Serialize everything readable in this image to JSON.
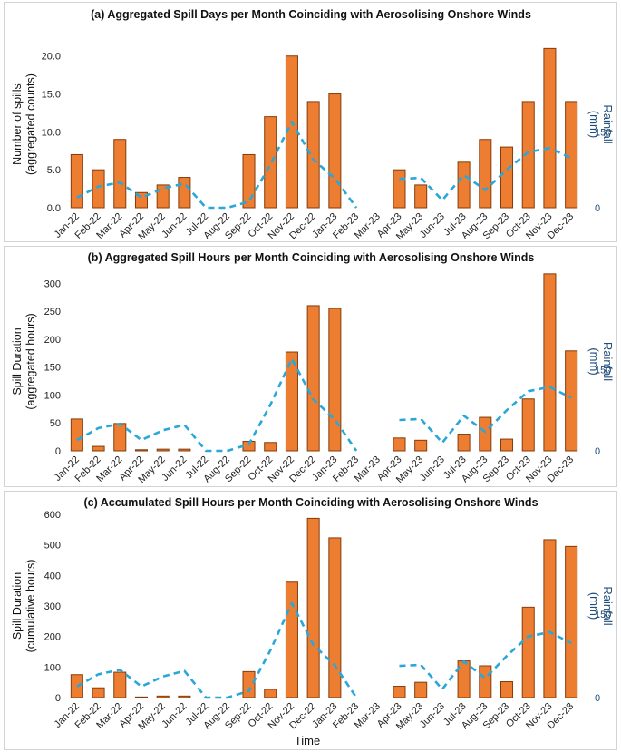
{
  "colors": {
    "bar_fill": "#ed7d31",
    "bar_stroke": "#843c0c",
    "rain_line": "#2aa7d9",
    "right_axis": "#1f4e79"
  },
  "xlabel": "Time",
  "chart_data": [
    {
      "type": "bar",
      "title": "(a) Aggregated Spill Days per Month Coinciding with Aerosolising Onshore Winds",
      "ylabel": [
        "Number of spills",
        "(aggregated counts)"
      ],
      "y2label": [
        "Rainfall",
        "(mm)"
      ],
      "categories": [
        "Jan-22",
        "Feb-22",
        "Mar-22",
        "Apr-22",
        "May-22",
        "Jun-22",
        "Jul-22",
        "Aug-22",
        "Sep-22",
        "Oct-22",
        "Nov-22",
        "Dec-22",
        "Jan-23",
        "Feb-23",
        "Mar-23",
        "Apr-23",
        "May-23",
        "Jun-23",
        "Jul-23",
        "Aug-23",
        "Sep-23",
        "Oct-23",
        "Nov-23",
        "Dec-23"
      ],
      "ylim": [
        0,
        22
      ],
      "yticks": [
        "0.0",
        "5.0",
        "10.0",
        "15.0",
        "20.0"
      ],
      "ytick_values": [
        0,
        5,
        10,
        15,
        20
      ],
      "y2lim": [
        0,
        330
      ],
      "y2ticks": [
        "0",
        "150"
      ],
      "y2tick_values": [
        0,
        150
      ],
      "series": [
        {
          "name": "Spills",
          "kind": "bar",
          "values": [
            7,
            5,
            9,
            2,
            3,
            4,
            0,
            0,
            7,
            12,
            20,
            14,
            15,
            0,
            0,
            5,
            3,
            0,
            6,
            9,
            8,
            14,
            21,
            14
          ]
        },
        {
          "name": "Rainfall",
          "kind": "line",
          "axis": "right",
          "values": [
            20,
            42,
            50,
            20,
            38,
            48,
            0,
            0,
            12,
            85,
            170,
            95,
            58,
            0,
            null,
            57,
            59,
            15,
            65,
            35,
            75,
            110,
            118,
            98
          ]
        }
      ]
    },
    {
      "type": "bar",
      "title": "(b) Aggregated Spill Hours per Month Coinciding with Aerosolising Onshore Winds",
      "ylabel": [
        "Spill Duration",
        "(aggregated hours)"
      ],
      "y2label": [
        "Rainfall",
        "(mm)"
      ],
      "categories": [
        "Jan-22",
        "Feb-22",
        "Mar-22",
        "Apr-22",
        "May-22",
        "Jun-22",
        "Jul-22",
        "Aug-22",
        "Sep-22",
        "Oct-22",
        "Nov-22",
        "Dec-22",
        "Jan-23",
        "Feb-23",
        "Mar-23",
        "Apr-23",
        "May-23",
        "Jun-23",
        "Jul-23",
        "Aug-23",
        "Sep-23",
        "Oct-23",
        "Nov-23",
        "Dec-23"
      ],
      "ylim": [
        0,
        320
      ],
      "yticks": [
        "0",
        "50",
        "100",
        "150",
        "200",
        "250",
        "300"
      ],
      "ytick_values": [
        0,
        50,
        100,
        150,
        200,
        250,
        300
      ],
      "y2lim": [
        0,
        330
      ],
      "y2ticks": [
        "0",
        "150"
      ],
      "y2tick_values": [
        0,
        150
      ],
      "series": [
        {
          "name": "Spills",
          "kind": "bar",
          "values": [
            57,
            8,
            49,
            2,
            3,
            3,
            0,
            0,
            17,
            15,
            177,
            260,
            255,
            0,
            0,
            23,
            19,
            0,
            30,
            60,
            21,
            93,
            317,
            179
          ]
        },
        {
          "name": "Rainfall",
          "kind": "line",
          "axis": "right",
          "values": [
            20,
            42,
            50,
            20,
            38,
            48,
            0,
            0,
            12,
            85,
            170,
            95,
            58,
            0,
            null,
            57,
            59,
            15,
            65,
            35,
            75,
            110,
            118,
            98
          ]
        }
      ]
    },
    {
      "type": "bar",
      "title": "(c) Accumulated Spill Hours per Month Coinciding with Aerosolising Onshore Winds",
      "ylabel": [
        "Spill Duration",
        "(cumulative hours)"
      ],
      "y2label": [
        "Rainfall",
        "(mm)"
      ],
      "categories": [
        "Jan-22",
        "Feb-22",
        "Mar-22",
        "Apr-22",
        "May-22",
        "Jun-22",
        "Jul-22",
        "Aug-22",
        "Sep-22",
        "Oct-22",
        "Nov-22",
        "Dec-22",
        "Jan-23",
        "Feb-23",
        "Mar-23",
        "Apr-23",
        "May-23",
        "Jun-23",
        "Jul-23",
        "Aug-23",
        "Sep-23",
        "Oct-23",
        "Nov-23",
        "Dec-23"
      ],
      "ylim": [
        0,
        600
      ],
      "yticks": [
        "0",
        "100",
        "200",
        "300",
        "400",
        "500",
        "600"
      ],
      "ytick_values": [
        0,
        100,
        200,
        300,
        400,
        500,
        600
      ],
      "y2lim": [
        0,
        330
      ],
      "y2ticks": [
        "0",
        "150"
      ],
      "y2tick_values": [
        0,
        150
      ],
      "series": [
        {
          "name": "Spills",
          "kind": "bar",
          "values": [
            75,
            32,
            83,
            2,
            5,
            5,
            0,
            0,
            85,
            27,
            378,
            587,
            523,
            0,
            0,
            37,
            50,
            0,
            120,
            104,
            52,
            296,
            517,
            495
          ]
        },
        {
          "name": "Rainfall",
          "kind": "line",
          "axis": "right",
          "values": [
            20,
            42,
            50,
            20,
            38,
            48,
            0,
            0,
            12,
            85,
            170,
            95,
            58,
            0,
            null,
            57,
            59,
            15,
            65,
            35,
            75,
            110,
            118,
            98
          ]
        }
      ]
    }
  ]
}
